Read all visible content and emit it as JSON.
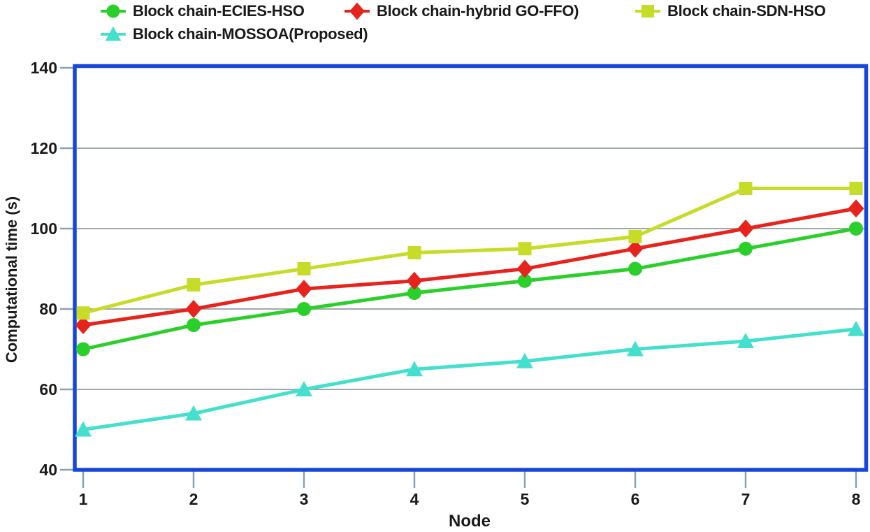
{
  "figure": {
    "background": "#ffffff",
    "border_color": "#1647dc",
    "gridline_color": "#9fa8ab",
    "tick_color": "#85a2b8",
    "text_color": "#1a1a1a"
  },
  "chart_data": {
    "type": "line",
    "title": "",
    "xlabel": "Node",
    "ylabel": "Computational time (s)",
    "x": [
      1,
      2,
      3,
      4,
      5,
      6,
      7,
      8
    ],
    "xlim": [
      1,
      8
    ],
    "ylim": [
      40,
      140
    ],
    "yticks": [
      40,
      60,
      80,
      100,
      120,
      140
    ],
    "xticks": [
      1,
      2,
      3,
      4,
      5,
      6,
      7,
      8
    ],
    "gridlines_y": [
      60,
      80,
      100,
      120
    ],
    "grid": "horizontal",
    "legend_position": "top-left",
    "series": [
      {
        "name": "Block chain-ECIES-HSO",
        "marker": "circle",
        "color": "#2bcf2b",
        "values": [
          70,
          76,
          80,
          84,
          87,
          90,
          95,
          100
        ]
      },
      {
        "name": "Block chain-hybrid GO-FFO)",
        "marker": "diamond",
        "color": "#e6231c",
        "values": [
          76,
          80,
          85,
          87,
          90,
          95,
          100,
          105
        ]
      },
      {
        "name": "Block chain-SDN-HSO",
        "marker": "square",
        "color": "#c6dc28",
        "values": [
          79,
          86,
          90,
          94,
          95,
          98,
          110,
          110
        ]
      },
      {
        "name": "Block chain-MOSSOA(Proposed)",
        "marker": "triangle",
        "color": "#45dfcd",
        "values": [
          50,
          54,
          60,
          65,
          67,
          70,
          72,
          75
        ]
      }
    ]
  }
}
